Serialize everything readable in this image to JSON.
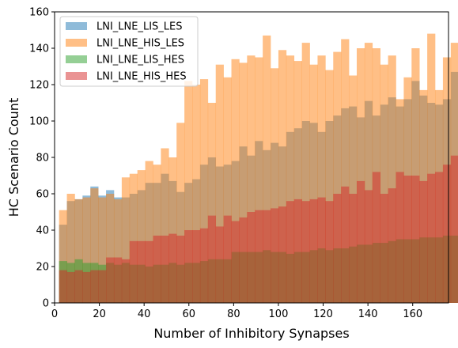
{
  "chart_data": {
    "type": "histogram",
    "xlabel": "Number of Inhibitory Synapses",
    "ylabel": "HC Scenario Count",
    "xlim": [
      0,
      176
    ],
    "ylim": [
      0,
      160
    ],
    "xticks": [
      0,
      20,
      40,
      60,
      80,
      100,
      120,
      140,
      160
    ],
    "yticks": [
      0,
      20,
      40,
      60,
      80,
      100,
      120,
      140,
      160
    ],
    "legend_position": "top-left",
    "bin_start": 2,
    "bin_width": 3.5,
    "series": [
      {
        "name": "LNI_LNE_LIS_LES",
        "color": "#1f77b4",
        "alpha": 0.5,
        "values": [
          43,
          56,
          57,
          59,
          64,
          59,
          62,
          58,
          58,
          60,
          62,
          66,
          66,
          71,
          67,
          61,
          66,
          68,
          76,
          80,
          75,
          76,
          78,
          86,
          81,
          89,
          84,
          88,
          86,
          94,
          96,
          100,
          99,
          94,
          100,
          103,
          107,
          108,
          102,
          111,
          103,
          109,
          113,
          108,
          112,
          122,
          114,
          110,
          109,
          112,
          127
        ]
      },
      {
        "name": "LNI_LNE_HIS_LES",
        "color": "#ff7f0e",
        "alpha": 0.5,
        "values": [
          51,
          60,
          57,
          58,
          63,
          58,
          60,
          57,
          69,
          71,
          73,
          78,
          76,
          85,
          80,
          99,
          122,
          120,
          123,
          110,
          131,
          124,
          134,
          132,
          136,
          135,
          147,
          129,
          139,
          136,
          133,
          143,
          131,
          136,
          128,
          138,
          145,
          125,
          140,
          143,
          140,
          131,
          136,
          112,
          124,
          140,
          117,
          148,
          117,
          135,
          143
        ]
      },
      {
        "name": "LNI_LNE_LIS_HES",
        "color": "#2ca02c",
        "alpha": 0.5,
        "values": [
          23,
          22,
          24,
          22,
          22,
          21,
          22,
          21,
          22,
          21,
          21,
          20,
          21,
          21,
          22,
          21,
          22,
          22,
          23,
          24,
          24,
          24,
          28,
          28,
          28,
          28,
          29,
          28,
          28,
          27,
          28,
          28,
          29,
          30,
          29,
          30,
          30,
          31,
          32,
          32,
          33,
          33,
          34,
          35,
          35,
          35,
          36,
          36,
          36,
          37,
          37
        ]
      },
      {
        "name": "LNI_LNE_HIS_HES",
        "color": "#d62728",
        "alpha": 0.5,
        "values": [
          18,
          17,
          18,
          17,
          18,
          18,
          25,
          25,
          24,
          34,
          34,
          34,
          37,
          37,
          38,
          37,
          40,
          40,
          41,
          48,
          42,
          48,
          45,
          47,
          50,
          51,
          51,
          52,
          53,
          56,
          57,
          56,
          57,
          58,
          56,
          60,
          64,
          60,
          67,
          62,
          72,
          60,
          63,
          72,
          70,
          70,
          67,
          71,
          72,
          76,
          81
        ]
      }
    ]
  }
}
